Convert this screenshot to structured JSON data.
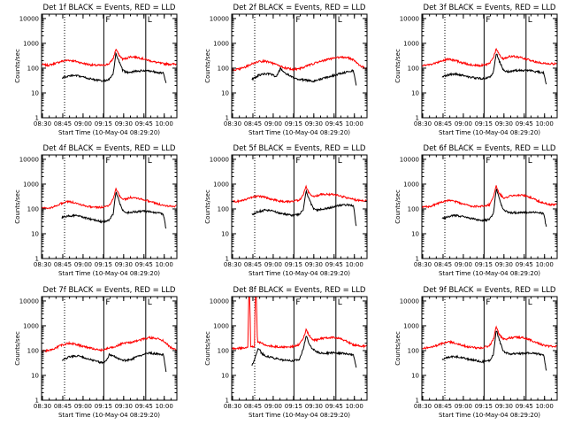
{
  "colors": {
    "events": "#000000",
    "lld": "#ff0000",
    "axis": "#000000",
    "background": "#ffffff"
  },
  "common": {
    "xlabel": "Start Time (10-May-04 08:29:20)",
    "ylabel": "Counts/sec",
    "x_ticks": [
      "08:30",
      "08:45",
      "09:00",
      "09:15",
      "09:30",
      "09:45",
      "10:00"
    ],
    "x_tick_minutes": [
      0.67,
      15.67,
      30.67,
      45.67,
      60.67,
      75.67,
      90.67
    ],
    "y_ticks": [
      "1",
      "10",
      "100",
      "1000",
      "10000"
    ],
    "y_tick_values": [
      1,
      10,
      100,
      1000,
      10000
    ],
    "xlim_minutes": [
      0,
      100
    ],
    "ylim": [
      1,
      15000
    ],
    "y_scale": "log",
    "markers": [
      {
        "minute": 17,
        "style": "dotted",
        "label": ""
      },
      {
        "minute": 46,
        "style": "solid",
        "label": "F"
      },
      {
        "minute": 77,
        "style": "solid",
        "label": "L"
      }
    ]
  },
  "chart_data": [
    {
      "type": "line",
      "title": "Det 1f BLACK = Events, RED = LLD",
      "x": [
        15,
        20,
        25,
        30,
        35,
        40,
        45,
        50,
        53,
        55,
        57,
        60,
        63,
        65,
        70,
        75,
        80,
        85,
        90,
        92
      ],
      "series": [
        {
          "name": "LLD",
          "color": "#ff0000",
          "x": [
            0,
            5,
            10,
            15,
            20,
            25,
            30,
            35,
            40,
            45,
            50,
            53,
            55,
            57,
            60,
            63,
            65,
            70,
            75,
            80,
            85,
            90,
            95,
            100
          ],
          "values": [
            140,
            130,
            155,
            190,
            210,
            190,
            160,
            140,
            130,
            130,
            150,
            250,
            600,
            350,
            230,
            250,
            290,
            280,
            240,
            200,
            170,
            150,
            145,
            145
          ]
        },
        {
          "name": "Events",
          "color": "#000000",
          "values": [
            40,
            48,
            50,
            45,
            38,
            34,
            30,
            35,
            60,
            400,
            200,
            80,
            68,
            70,
            75,
            80,
            78,
            70,
            62,
            25
          ]
        }
      ]
    },
    {
      "type": "line",
      "title": "Det 2f BLACK = Events, RED = LLD",
      "x": [
        15,
        20,
        25,
        30,
        33,
        36,
        40,
        45,
        50,
        55,
        60,
        65,
        70,
        75,
        80,
        85,
        90,
        92
      ],
      "series": [
        {
          "name": "LLD",
          "color": "#ff0000",
          "x": [
            0,
            5,
            10,
            15,
            20,
            25,
            30,
            35,
            40,
            45,
            50,
            55,
            60,
            65,
            70,
            75,
            80,
            85,
            90,
            95,
            100
          ],
          "values": [
            85,
            90,
            110,
            150,
            185,
            190,
            160,
            125,
            100,
            90,
            95,
            120,
            150,
            180,
            220,
            250,
            280,
            270,
            220,
            120,
            95
          ]
        },
        {
          "name": "Events",
          "color": "#000000",
          "values": [
            35,
            52,
            60,
            56,
            45,
            95,
            60,
            42,
            35,
            33,
            30,
            35,
            42,
            50,
            60,
            70,
            80,
            20
          ]
        }
      ]
    },
    {
      "type": "line",
      "title": "Det 3f BLACK = Events, RED = LLD",
      "x": [
        15,
        20,
        25,
        30,
        35,
        40,
        45,
        50,
        53,
        55,
        57,
        60,
        63,
        65,
        70,
        75,
        80,
        85,
        90,
        92
      ],
      "series": [
        {
          "name": "LLD",
          "color": "#ff0000",
          "x": [
            0,
            5,
            10,
            15,
            20,
            25,
            30,
            35,
            40,
            45,
            50,
            53,
            55,
            57,
            60,
            63,
            65,
            70,
            75,
            80,
            85,
            90,
            95,
            100
          ],
          "values": [
            130,
            135,
            160,
            200,
            230,
            200,
            165,
            140,
            130,
            130,
            155,
            280,
            600,
            350,
            240,
            260,
            300,
            290,
            250,
            210,
            175,
            155,
            150,
            150
          ]
        },
        {
          "name": "Events",
          "color": "#000000",
          "values": [
            45,
            55,
            58,
            52,
            44,
            40,
            38,
            42,
            70,
            420,
            210,
            90,
            72,
            75,
            80,
            82,
            80,
            72,
            65,
            22
          ]
        }
      ]
    },
    {
      "type": "line",
      "title": "Det 4f BLACK = Events, RED = LLD",
      "x": [
        15,
        20,
        25,
        30,
        35,
        40,
        45,
        50,
        53,
        55,
        57,
        60,
        63,
        65,
        70,
        75,
        80,
        85,
        90,
        92
      ],
      "series": [
        {
          "name": "LLD",
          "color": "#ff0000",
          "x": [
            0,
            5,
            10,
            15,
            20,
            25,
            30,
            35,
            40,
            45,
            50,
            53,
            55,
            57,
            60,
            63,
            65,
            70,
            75,
            80,
            85,
            90,
            95,
            100
          ],
          "values": [
            110,
            105,
            130,
            170,
            200,
            175,
            145,
            125,
            115,
            118,
            140,
            260,
            700,
            380,
            240,
            250,
            290,
            280,
            240,
            200,
            165,
            140,
            130,
            130
          ]
        },
        {
          "name": "Events",
          "color": "#000000",
          "values": [
            45,
            52,
            55,
            48,
            40,
            35,
            30,
            35,
            65,
            500,
            230,
            85,
            70,
            72,
            78,
            80,
            78,
            70,
            62,
            15
          ]
        }
      ]
    },
    {
      "type": "line",
      "title": "Det 5f BLACK = Events, RED = LLD",
      "x": [
        15,
        20,
        25,
        30,
        35,
        40,
        45,
        50,
        53,
        55,
        57,
        60,
        63,
        65,
        70,
        75,
        80,
        85,
        90,
        92
      ],
      "series": [
        {
          "name": "LLD",
          "color": "#ff0000",
          "x": [
            0,
            5,
            10,
            15,
            20,
            25,
            30,
            35,
            40,
            45,
            50,
            53,
            55,
            57,
            60,
            63,
            65,
            70,
            75,
            80,
            85,
            90,
            95,
            100
          ],
          "values": [
            200,
            205,
            240,
            300,
            330,
            290,
            240,
            210,
            195,
            200,
            230,
            380,
            800,
            450,
            320,
            340,
            380,
            390,
            380,
            340,
            280,
            240,
            220,
            210
          ]
        },
        {
          "name": "Events",
          "color": "#000000",
          "values": [
            60,
            80,
            90,
            85,
            70,
            60,
            55,
            60,
            100,
            550,
            260,
            110,
            90,
            95,
            105,
            120,
            140,
            150,
            135,
            20
          ]
        }
      ]
    },
    {
      "type": "line",
      "title": "Det 6f BLACK = Events, RED = LLD",
      "x": [
        15,
        20,
        25,
        30,
        35,
        40,
        45,
        50,
        53,
        55,
        57,
        60,
        63,
        65,
        70,
        75,
        80,
        85,
        90,
        92
      ],
      "series": [
        {
          "name": "LLD",
          "color": "#ff0000",
          "x": [
            0,
            5,
            10,
            15,
            20,
            25,
            30,
            35,
            40,
            45,
            50,
            53,
            55,
            57,
            60,
            63,
            65,
            70,
            75,
            80,
            85,
            90,
            95,
            100
          ],
          "values": [
            120,
            125,
            150,
            190,
            220,
            195,
            160,
            135,
            125,
            128,
            150,
            300,
            850,
            450,
            280,
            290,
            340,
            370,
            350,
            290,
            220,
            170,
            150,
            150
          ]
        },
        {
          "name": "Events",
          "color": "#000000",
          "values": [
            40,
            50,
            55,
            50,
            42,
            38,
            34,
            38,
            70,
            650,
            280,
            95,
            75,
            72,
            70,
            72,
            75,
            72,
            65,
            18
          ]
        }
      ]
    },
    {
      "type": "line",
      "title": "Det 7f BLACK = Events, RED = LLD",
      "x": [
        15,
        20,
        25,
        30,
        35,
        40,
        45,
        48,
        50,
        55,
        60,
        65,
        70,
        75,
        80,
        85,
        90,
        92
      ],
      "series": [
        {
          "name": "LLD",
          "color": "#ff0000",
          "x": [
            0,
            5,
            10,
            15,
            20,
            25,
            30,
            35,
            40,
            45,
            50,
            55,
            60,
            65,
            70,
            75,
            80,
            85,
            90,
            95,
            100
          ],
          "values": [
            95,
            100,
            125,
            170,
            200,
            185,
            150,
            130,
            115,
            105,
            130,
            150,
            200,
            210,
            240,
            290,
            330,
            310,
            250,
            140,
            105
          ]
        },
        {
          "name": "Events",
          "color": "#000000",
          "values": [
            40,
            55,
            62,
            56,
            45,
            38,
            32,
            38,
            70,
            55,
            40,
            42,
            55,
            70,
            80,
            75,
            68,
            15
          ]
        }
      ]
    },
    {
      "type": "line",
      "title": "Det 8f BLACK = Events, RED = LLD",
      "x": [
        15,
        20,
        22,
        25,
        30,
        35,
        40,
        45,
        50,
        53,
        55,
        57,
        60,
        65,
        70,
        75,
        80,
        85,
        90,
        92
      ],
      "series": [
        {
          "name": "LLD",
          "color": "#ff0000",
          "x": [
            0,
            5,
            10,
            12,
            12.6,
            13.4,
            14,
            15,
            16.8,
            17.4,
            18.2,
            19,
            22,
            25,
            30,
            35,
            40,
            45,
            50,
            53,
            55,
            57,
            60,
            63,
            65,
            70,
            75,
            80,
            85,
            90,
            95,
            100
          ],
          "values": [
            120,
            125,
            130,
            135,
            15000,
            15000,
            140,
            140,
            150,
            15000,
            15000,
            230,
            200,
            170,
            150,
            140,
            140,
            145,
            180,
            320,
            700,
            420,
            280,
            270,
            300,
            330,
            350,
            310,
            240,
            170,
            155,
            150
          ]
        },
        {
          "name": "Events",
          "color": "#000000",
          "values": [
            25,
            130,
            80,
            60,
            52,
            45,
            40,
            38,
            45,
            120,
            400,
            200,
            110,
            80,
            78,
            82,
            80,
            75,
            68,
            20
          ]
        }
      ]
    },
    {
      "type": "line",
      "title": "Det 9f BLACK = Events, RED = LLD",
      "x": [
        15,
        20,
        25,
        30,
        35,
        40,
        45,
        50,
        53,
        55,
        57,
        60,
        63,
        65,
        70,
        75,
        80,
        85,
        90,
        92
      ],
      "series": [
        {
          "name": "LLD",
          "color": "#ff0000",
          "x": [
            0,
            5,
            10,
            15,
            20,
            25,
            30,
            35,
            40,
            45,
            50,
            53,
            55,
            57,
            60,
            63,
            65,
            70,
            75,
            80,
            85,
            90,
            95,
            100
          ],
          "values": [
            125,
            130,
            155,
            195,
            225,
            200,
            165,
            140,
            130,
            132,
            155,
            300,
            900,
            470,
            290,
            290,
            330,
            350,
            330,
            270,
            210,
            165,
            150,
            150
          ]
        },
        {
          "name": "Events",
          "color": "#000000",
          "values": [
            45,
            55,
            58,
            52,
            44,
            40,
            36,
            40,
            72,
            700,
            300,
            100,
            78,
            75,
            74,
            78,
            80,
            75,
            68,
            16
          ]
        }
      ]
    }
  ]
}
